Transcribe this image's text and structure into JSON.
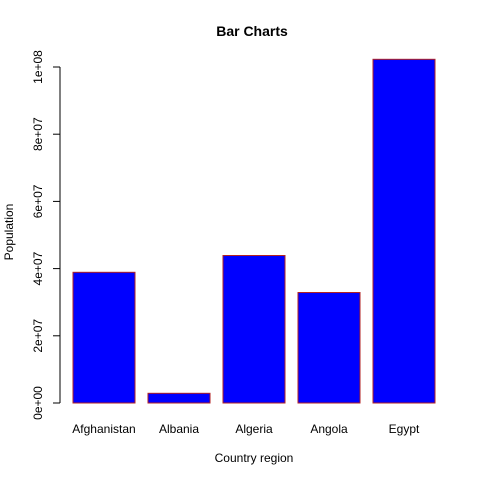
{
  "chart_data": {
    "type": "bar",
    "title": "Bar Charts",
    "xlabel": "Country region",
    "ylabel": "Population",
    "categories": [
      "Afghanistan",
      "Albania",
      "Algeria",
      "Angola",
      "Egypt"
    ],
    "values": [
      38900000,
      2880000,
      43900000,
      32900000,
      102300000
    ],
    "ylim": [
      0,
      100000000
    ],
    "yticks": [
      0,
      20000000,
      40000000,
      60000000,
      80000000,
      100000000
    ],
    "ytick_labels": [
      "0e+00",
      "2e+07",
      "4e+07",
      "6e+07",
      "8e+07",
      "1e+08"
    ],
    "grid": false,
    "legend": "none",
    "colors": {
      "bar_fill": "#0000FF",
      "bar_border": "#B22222",
      "axis": "#000000",
      "text": "#000000"
    }
  }
}
